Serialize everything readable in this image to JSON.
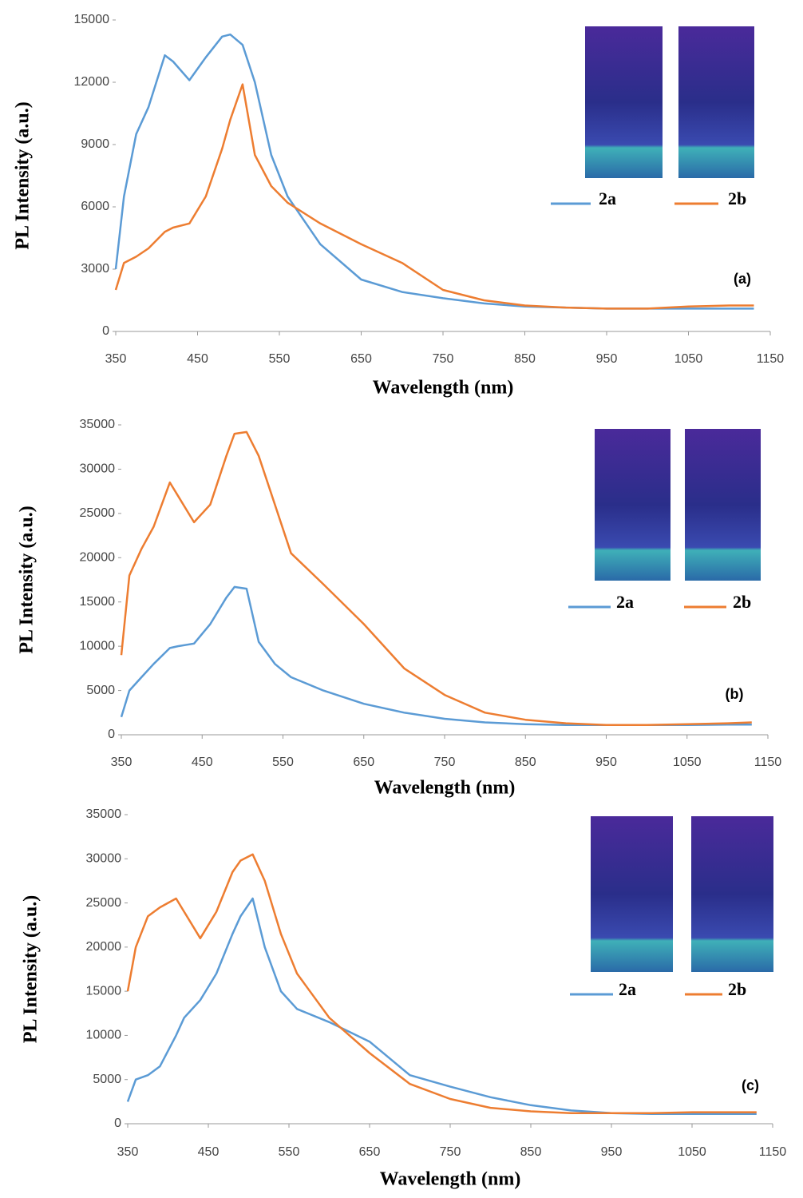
{
  "chart_data": [
    {
      "type": "line",
      "x_label": "Wavelength (nm)",
      "y_label": "PL Intensity (a.u.)",
      "annotation": "(a)",
      "x": [
        350,
        360,
        375,
        390,
        410,
        420,
        440,
        460,
        480,
        490,
        505,
        520,
        540,
        560,
        600,
        650,
        700,
        750,
        800,
        850,
        900,
        950,
        1000,
        1050,
        1100,
        1130
      ],
      "series": [
        {
          "name": "2a",
          "color": "#5b9bd5",
          "values": [
            3000,
            6500,
            9500,
            10800,
            13300,
            13000,
            12100,
            13200,
            14200,
            14300,
            13800,
            12000,
            8500,
            6500,
            4200,
            2500,
            1900,
            1600,
            1350,
            1200,
            1150,
            1100,
            1100,
            1100,
            1100,
            1100
          ]
        },
        {
          "name": "2b",
          "color": "#ed7d31",
          "values": [
            2000,
            3300,
            3600,
            4000,
            4800,
            5000,
            5200,
            6500,
            8800,
            10200,
            11900,
            8500,
            7000,
            6200,
            5200,
            4200,
            3300,
            2000,
            1500,
            1250,
            1150,
            1100,
            1100,
            1200,
            1250,
            1250
          ]
        }
      ],
      "xlim": [
        350,
        1150
      ],
      "xticks": [
        350,
        450,
        550,
        650,
        750,
        850,
        950,
        1050,
        1150
      ],
      "ylim": [
        0,
        15000
      ],
      "yticks": [
        0,
        3000,
        6000,
        9000,
        12000,
        15000
      ],
      "grid": false
    },
    {
      "type": "line",
      "x_label": "Wavelength (nm)",
      "y_label": "PL Intensity (a.u.)",
      "annotation": "(b)",
      "x": [
        350,
        360,
        375,
        390,
        410,
        420,
        440,
        460,
        480,
        490,
        505,
        520,
        540,
        560,
        600,
        650,
        700,
        750,
        800,
        850,
        900,
        950,
        1000,
        1050,
        1100,
        1130
      ],
      "series": [
        {
          "name": "2a",
          "color": "#5b9bd5",
          "values": [
            2000,
            5000,
            6500,
            8000,
            9800,
            10000,
            10300,
            12500,
            15500,
            16700,
            16500,
            10500,
            8000,
            6500,
            5000,
            3500,
            2500,
            1800,
            1400,
            1200,
            1100,
            1100,
            1100,
            1100,
            1150,
            1150
          ]
        },
        {
          "name": "2b",
          "color": "#ed7d31",
          "values": [
            9000,
            18000,
            21000,
            23500,
            28500,
            27000,
            24000,
            26000,
            31500,
            34000,
            34200,
            31500,
            26000,
            20500,
            17000,
            12500,
            7500,
            4500,
            2500,
            1700,
            1300,
            1100,
            1100,
            1200,
            1300,
            1400
          ]
        }
      ],
      "xlim": [
        350,
        1150
      ],
      "xticks": [
        350,
        450,
        550,
        650,
        750,
        850,
        950,
        1050,
        1150
      ],
      "ylim": [
        0,
        35000
      ],
      "yticks": [
        0,
        5000,
        10000,
        15000,
        20000,
        25000,
        30000,
        35000
      ],
      "grid": false
    },
    {
      "type": "line",
      "x_label": "Wavelength (nm)",
      "y_label": "PL Intensity (a.u.)",
      "annotation": "(c)",
      "x": [
        350,
        360,
        375,
        390,
        410,
        420,
        440,
        460,
        480,
        490,
        505,
        520,
        540,
        560,
        600,
        650,
        700,
        750,
        800,
        850,
        900,
        950,
        1000,
        1050,
        1100,
        1130
      ],
      "series": [
        {
          "name": "2a",
          "color": "#5b9bd5",
          "values": [
            2500,
            5000,
            5500,
            6500,
            10000,
            12000,
            14000,
            17000,
            21500,
            23500,
            25500,
            20000,
            15000,
            13000,
            11500,
            9300,
            5500,
            4200,
            3000,
            2100,
            1500,
            1200,
            1100,
            1100,
            1100,
            1100
          ]
        },
        {
          "name": "2b",
          "color": "#ed7d31",
          "values": [
            15000,
            20000,
            23500,
            24500,
            25500,
            24000,
            21000,
            24000,
            28500,
            29800,
            30500,
            27500,
            21500,
            17000,
            12000,
            8000,
            4500,
            2800,
            1800,
            1400,
            1200,
            1200,
            1200,
            1300,
            1300,
            1300
          ]
        }
      ],
      "xlim": [
        350,
        1150
      ],
      "xticks": [
        350,
        450,
        550,
        650,
        750,
        850,
        950,
        1050,
        1150
      ],
      "ylim": [
        0,
        35000
      ],
      "yticks": [
        0,
        5000,
        10000,
        15000,
        20000,
        25000,
        30000,
        35000
      ],
      "grid": false
    }
  ]
}
